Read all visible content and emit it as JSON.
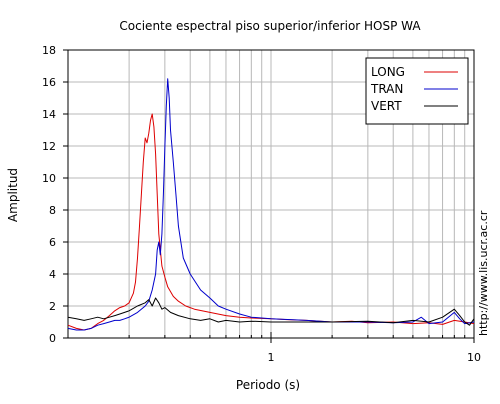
{
  "chart_data": {
    "type": "line",
    "title": "Cociente espectral piso superior/inferior  HOSP WA",
    "xlabel": "Periodo (s)",
    "ylabel": "Amplitud",
    "x_scale": "log",
    "xlim": [
      0.1,
      10
    ],
    "ylim": [
      0,
      18
    ],
    "x_tick_labels": [
      {
        "value": 1,
        "label": "1"
      },
      {
        "value": 10,
        "label": "10"
      }
    ],
    "y_ticks": [
      0,
      2,
      4,
      6,
      8,
      10,
      12,
      14,
      16,
      18
    ],
    "grid": true,
    "legend_position": "top-right",
    "side_text": "http://www.lis.ucr.ac.cr",
    "series": [
      {
        "name": "LONG",
        "color": "#dd0000",
        "points": [
          [
            0.1,
            0.8
          ],
          [
            0.11,
            0.6
          ],
          [
            0.12,
            0.5
          ],
          [
            0.13,
            0.6
          ],
          [
            0.14,
            0.9
          ],
          [
            0.15,
            1.1
          ],
          [
            0.16,
            1.4
          ],
          [
            0.17,
            1.7
          ],
          [
            0.18,
            1.9
          ],
          [
            0.19,
            2.0
          ],
          [
            0.2,
            2.2
          ],
          [
            0.21,
            2.8
          ],
          [
            0.215,
            3.5
          ],
          [
            0.22,
            5.0
          ],
          [
            0.225,
            7.0
          ],
          [
            0.23,
            9.0
          ],
          [
            0.235,
            11.0
          ],
          [
            0.24,
            12.5
          ],
          [
            0.245,
            12.2
          ],
          [
            0.25,
            12.8
          ],
          [
            0.255,
            13.6
          ],
          [
            0.26,
            14.0
          ],
          [
            0.265,
            13.2
          ],
          [
            0.27,
            11.5
          ],
          [
            0.275,
            9.0
          ],
          [
            0.28,
            6.5
          ],
          [
            0.29,
            4.5
          ],
          [
            0.3,
            3.8
          ],
          [
            0.31,
            3.2
          ],
          [
            0.33,
            2.6
          ],
          [
            0.35,
            2.3
          ],
          [
            0.38,
            2.0
          ],
          [
            0.42,
            1.8
          ],
          [
            0.5,
            1.6
          ],
          [
            0.6,
            1.4
          ],
          [
            0.7,
            1.3
          ],
          [
            0.8,
            1.25
          ],
          [
            1.0,
            1.2
          ],
          [
            1.2,
            1.15
          ],
          [
            1.5,
            1.1
          ],
          [
            2.0,
            1.0
          ],
          [
            2.5,
            1.05
          ],
          [
            3.0,
            0.95
          ],
          [
            4.0,
            1.0
          ],
          [
            5.0,
            0.9
          ],
          [
            6.0,
            0.95
          ],
          [
            7.0,
            0.85
          ],
          [
            8.0,
            1.1
          ],
          [
            9.0,
            1.0
          ],
          [
            10.0,
            0.9
          ]
        ]
      },
      {
        "name": "TRAN",
        "color": "#0000cc",
        "points": [
          [
            0.1,
            0.6
          ],
          [
            0.11,
            0.5
          ],
          [
            0.12,
            0.5
          ],
          [
            0.13,
            0.6
          ],
          [
            0.14,
            0.8
          ],
          [
            0.15,
            0.9
          ],
          [
            0.16,
            1.0
          ],
          [
            0.17,
            1.1
          ],
          [
            0.18,
            1.1
          ],
          [
            0.19,
            1.2
          ],
          [
            0.2,
            1.3
          ],
          [
            0.22,
            1.6
          ],
          [
            0.24,
            2.0
          ],
          [
            0.25,
            2.3
          ],
          [
            0.26,
            3.0
          ],
          [
            0.27,
            4.0
          ],
          [
            0.275,
            5.5
          ],
          [
            0.28,
            6.0
          ],
          [
            0.285,
            5.2
          ],
          [
            0.29,
            6.5
          ],
          [
            0.295,
            9.0
          ],
          [
            0.3,
            12.0
          ],
          [
            0.305,
            14.5
          ],
          [
            0.31,
            16.2
          ],
          [
            0.315,
            15.0
          ],
          [
            0.32,
            13.0
          ],
          [
            0.33,
            11.0
          ],
          [
            0.34,
            9.0
          ],
          [
            0.35,
            7.0
          ],
          [
            0.37,
            5.0
          ],
          [
            0.4,
            4.0
          ],
          [
            0.45,
            3.0
          ],
          [
            0.5,
            2.5
          ],
          [
            0.55,
            2.0
          ],
          [
            0.6,
            1.8
          ],
          [
            0.7,
            1.5
          ],
          [
            0.8,
            1.3
          ],
          [
            1.0,
            1.2
          ],
          [
            1.5,
            1.1
          ],
          [
            2.0,
            1.0
          ],
          [
            3.0,
            1.0
          ],
          [
            4.0,
            0.95
          ],
          [
            5.0,
            1.0
          ],
          [
            5.5,
            1.3
          ],
          [
            6.0,
            0.9
          ],
          [
            7.0,
            1.0
          ],
          [
            8.0,
            1.6
          ],
          [
            8.5,
            1.2
          ],
          [
            9.0,
            0.9
          ],
          [
            10.0,
            1.0
          ]
        ]
      },
      {
        "name": "VERT",
        "color": "#000000",
        "points": [
          [
            0.1,
            1.3
          ],
          [
            0.11,
            1.2
          ],
          [
            0.12,
            1.1
          ],
          [
            0.13,
            1.2
          ],
          [
            0.14,
            1.3
          ],
          [
            0.15,
            1.2
          ],
          [
            0.16,
            1.3
          ],
          [
            0.17,
            1.4
          ],
          [
            0.18,
            1.5
          ],
          [
            0.19,
            1.6
          ],
          [
            0.2,
            1.7
          ],
          [
            0.22,
            2.0
          ],
          [
            0.24,
            2.2
          ],
          [
            0.25,
            2.4
          ],
          [
            0.26,
            2.0
          ],
          [
            0.27,
            2.5
          ],
          [
            0.28,
            2.2
          ],
          [
            0.29,
            1.8
          ],
          [
            0.3,
            1.9
          ],
          [
            0.32,
            1.6
          ],
          [
            0.35,
            1.4
          ],
          [
            0.4,
            1.2
          ],
          [
            0.45,
            1.1
          ],
          [
            0.5,
            1.2
          ],
          [
            0.55,
            1.0
          ],
          [
            0.6,
            1.1
          ],
          [
            0.7,
            1.0
          ],
          [
            0.8,
            1.05
          ],
          [
            1.0,
            1.0
          ],
          [
            1.5,
            1.0
          ],
          [
            2.0,
            1.0
          ],
          [
            3.0,
            1.05
          ],
          [
            4.0,
            0.95
          ],
          [
            5.0,
            1.1
          ],
          [
            6.0,
            1.0
          ],
          [
            7.0,
            1.3
          ],
          [
            8.0,
            1.8
          ],
          [
            8.5,
            1.4
          ],
          [
            9.0,
            1.0
          ],
          [
            9.5,
            0.8
          ],
          [
            10.0,
            1.2
          ]
        ]
      }
    ]
  }
}
